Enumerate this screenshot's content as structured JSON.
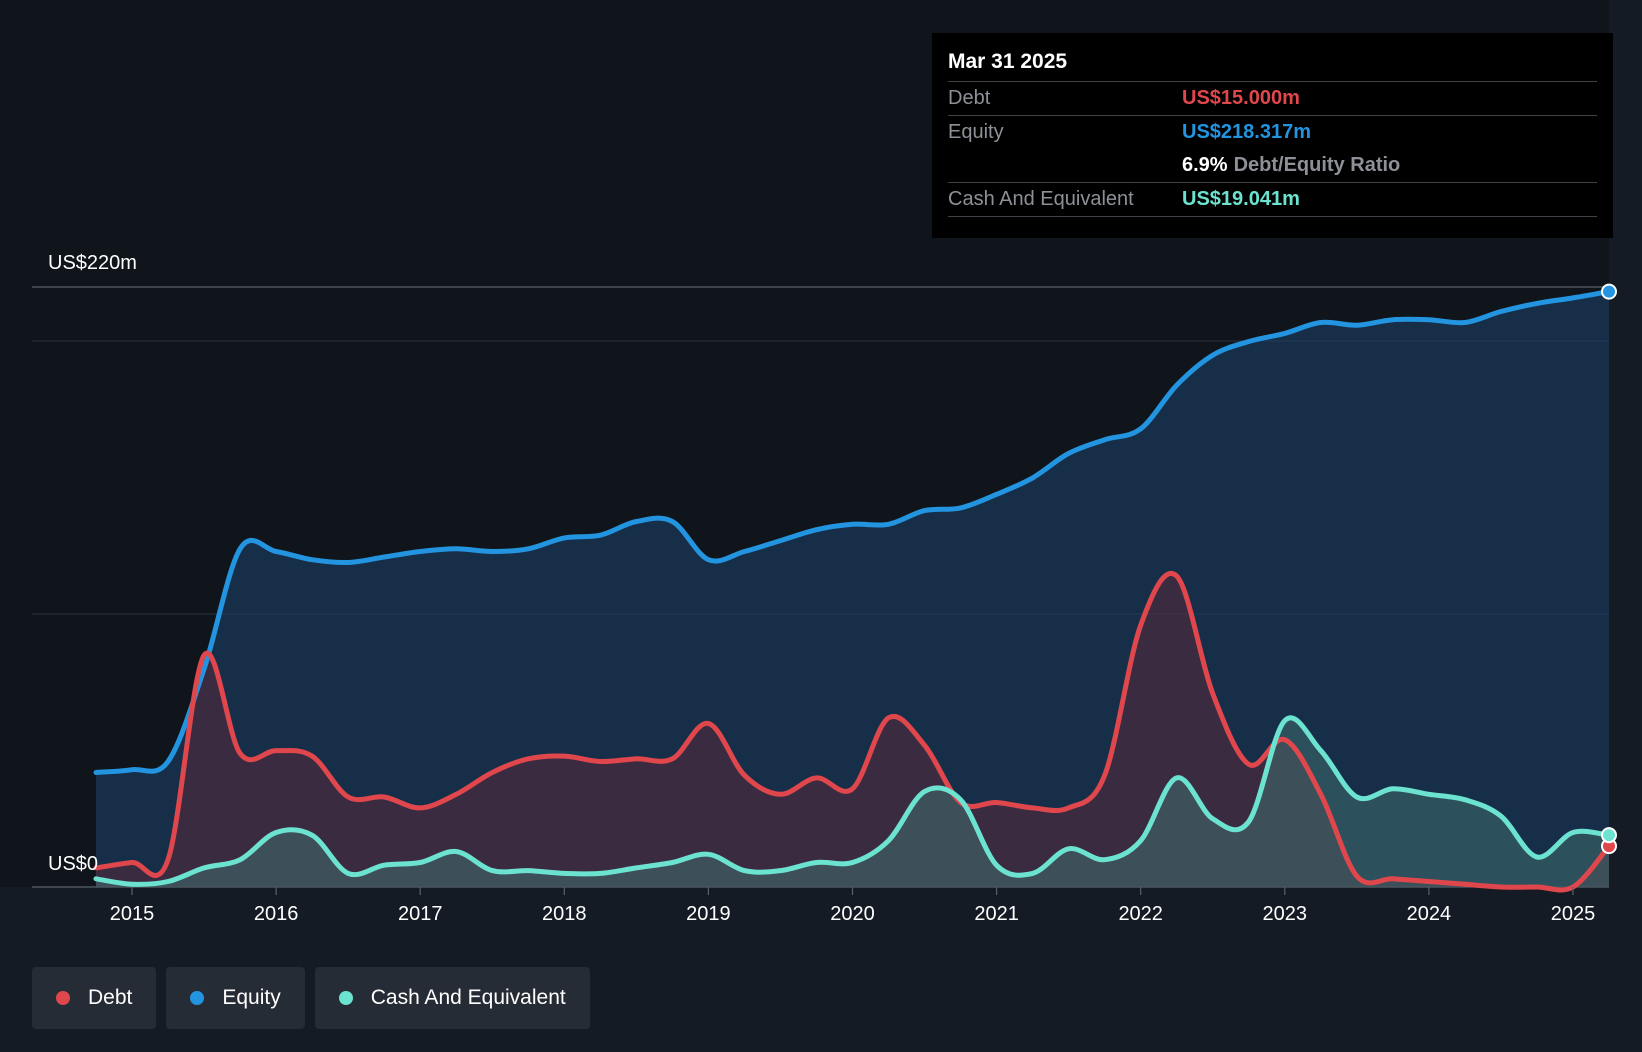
{
  "tooltip": {
    "date": "Mar 31 2025",
    "debt_label": "Debt",
    "debt_value": "US$15.000m",
    "equity_label": "Equity",
    "equity_value": "US$218.317m",
    "ratio_value": "6.9%",
    "ratio_label": "Debt/Equity Ratio",
    "cash_label": "Cash And Equivalent",
    "cash_value": "US$19.041m"
  },
  "legend": {
    "debt": "Debt",
    "equity": "Equity",
    "cash": "Cash And Equivalent"
  },
  "colors": {
    "debt": "#e0474c",
    "equity": "#2394df",
    "cash": "#6ce3d0",
    "background": "#151b24"
  },
  "chart_data": {
    "type": "area",
    "title": "",
    "ylabel_top": "US$220m",
    "ylabel_bottom": "US$0",
    "ylim": [
      0,
      220
    ],
    "xlim": [
      2014.75,
      2025.25
    ],
    "x_ticks": [
      "2015",
      "2016",
      "2017",
      "2018",
      "2019",
      "2020",
      "2021",
      "2022",
      "2023",
      "2024",
      "2025"
    ],
    "x_tick_values": [
      2015,
      2016,
      2017,
      2018,
      2019,
      2020,
      2021,
      2022,
      2023,
      2024,
      2025
    ],
    "series": [
      {
        "name": "Equity",
        "key": "equity",
        "points": [
          [
            2014.75,
            42
          ],
          [
            2015.0,
            43
          ],
          [
            2015.25,
            46
          ],
          [
            2015.5,
            80
          ],
          [
            2015.75,
            124
          ],
          [
            2016.0,
            123
          ],
          [
            2016.25,
            120
          ],
          [
            2016.5,
            119
          ],
          [
            2016.75,
            121
          ],
          [
            2017.0,
            123
          ],
          [
            2017.25,
            124
          ],
          [
            2017.5,
            123
          ],
          [
            2017.75,
            124
          ],
          [
            2018.0,
            128
          ],
          [
            2018.25,
            129
          ],
          [
            2018.5,
            134
          ],
          [
            2018.75,
            134
          ],
          [
            2019.0,
            120
          ],
          [
            2019.25,
            123
          ],
          [
            2019.5,
            127
          ],
          [
            2019.75,
            131
          ],
          [
            2020.0,
            133
          ],
          [
            2020.25,
            133
          ],
          [
            2020.5,
            138
          ],
          [
            2020.75,
            139
          ],
          [
            2021.0,
            144
          ],
          [
            2021.25,
            150
          ],
          [
            2021.5,
            159
          ],
          [
            2021.75,
            164
          ],
          [
            2022.0,
            168
          ],
          [
            2022.25,
            184
          ],
          [
            2022.5,
            195
          ],
          [
            2022.75,
            200
          ],
          [
            2023.0,
            203
          ],
          [
            2023.25,
            207
          ],
          [
            2023.5,
            206
          ],
          [
            2023.75,
            208
          ],
          [
            2024.0,
            208
          ],
          [
            2024.25,
            207
          ],
          [
            2024.5,
            211
          ],
          [
            2024.75,
            214
          ],
          [
            2025.0,
            216
          ],
          [
            2025.25,
            218.3
          ]
        ]
      },
      {
        "name": "Debt",
        "key": "debt",
        "points": [
          [
            2014.75,
            7
          ],
          [
            2015.0,
            9
          ],
          [
            2015.25,
            10
          ],
          [
            2015.5,
            85
          ],
          [
            2015.75,
            49
          ],
          [
            2016.0,
            50
          ],
          [
            2016.25,
            48
          ],
          [
            2016.5,
            33
          ],
          [
            2016.75,
            33
          ],
          [
            2017.0,
            29
          ],
          [
            2017.25,
            34
          ],
          [
            2017.5,
            42
          ],
          [
            2017.75,
            47
          ],
          [
            2018.0,
            48
          ],
          [
            2018.25,
            46
          ],
          [
            2018.5,
            47
          ],
          [
            2018.75,
            47
          ],
          [
            2019.0,
            60
          ],
          [
            2019.25,
            41
          ],
          [
            2019.5,
            34
          ],
          [
            2019.75,
            40
          ],
          [
            2020.0,
            36
          ],
          [
            2020.25,
            62
          ],
          [
            2020.5,
            52
          ],
          [
            2020.75,
            31
          ],
          [
            2021.0,
            31
          ],
          [
            2021.25,
            29
          ],
          [
            2021.5,
            29
          ],
          [
            2021.75,
            41
          ],
          [
            2022.0,
            96
          ],
          [
            2022.25,
            114
          ],
          [
            2022.5,
            71
          ],
          [
            2022.75,
            45
          ],
          [
            2023.0,
            54
          ],
          [
            2023.25,
            34
          ],
          [
            2023.5,
            4
          ],
          [
            2023.75,
            3
          ],
          [
            2024.0,
            2
          ],
          [
            2024.25,
            1
          ],
          [
            2024.5,
            0
          ],
          [
            2024.75,
            0
          ],
          [
            2025.0,
            0
          ],
          [
            2025.25,
            15
          ]
        ]
      },
      {
        "name": "Cash And Equivalent",
        "key": "cash",
        "points": [
          [
            2014.75,
            3
          ],
          [
            2015.0,
            1
          ],
          [
            2015.25,
            2
          ],
          [
            2015.5,
            7
          ],
          [
            2015.75,
            10
          ],
          [
            2016.0,
            20
          ],
          [
            2016.25,
            19
          ],
          [
            2016.5,
            5
          ],
          [
            2016.75,
            8
          ],
          [
            2017.0,
            9
          ],
          [
            2017.25,
            13
          ],
          [
            2017.5,
            6
          ],
          [
            2017.75,
            6
          ],
          [
            2018.0,
            5
          ],
          [
            2018.25,
            5
          ],
          [
            2018.5,
            7
          ],
          [
            2018.75,
            9
          ],
          [
            2019.0,
            12
          ],
          [
            2019.25,
            6
          ],
          [
            2019.5,
            6
          ],
          [
            2019.75,
            9
          ],
          [
            2020.0,
            9
          ],
          [
            2020.25,
            17
          ],
          [
            2020.5,
            35
          ],
          [
            2020.75,
            32
          ],
          [
            2021.0,
            8
          ],
          [
            2021.25,
            5
          ],
          [
            2021.5,
            14
          ],
          [
            2021.75,
            10
          ],
          [
            2022.0,
            17
          ],
          [
            2022.25,
            40
          ],
          [
            2022.5,
            25
          ],
          [
            2022.75,
            24
          ],
          [
            2023.0,
            61
          ],
          [
            2023.25,
            50
          ],
          [
            2023.5,
            33
          ],
          [
            2023.75,
            36
          ],
          [
            2024.0,
            34
          ],
          [
            2024.25,
            32
          ],
          [
            2024.5,
            26
          ],
          [
            2024.75,
            11
          ],
          [
            2025.0,
            20
          ],
          [
            2025.25,
            19
          ]
        ]
      }
    ]
  }
}
